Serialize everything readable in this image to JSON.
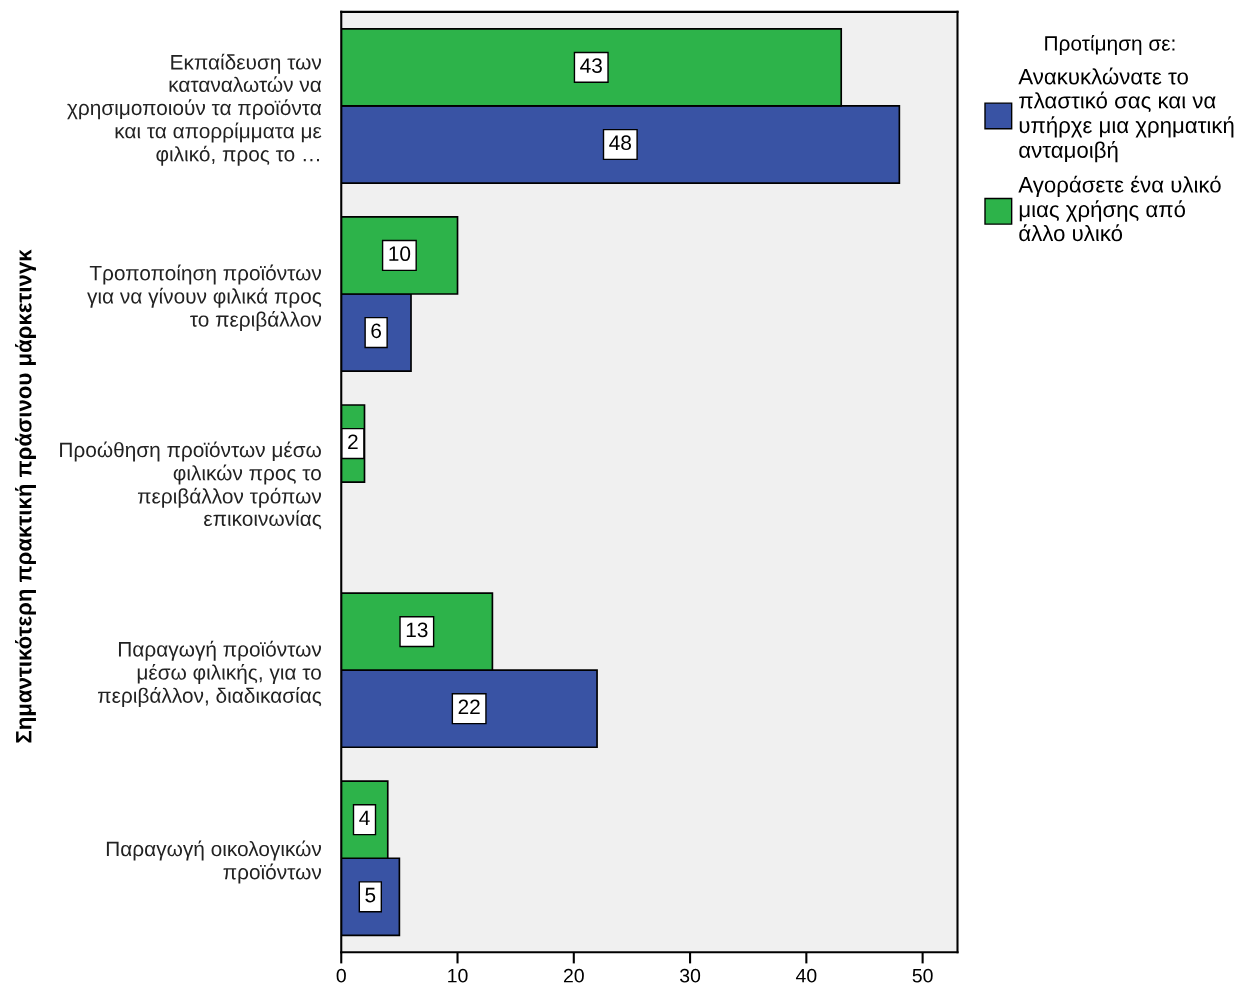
{
  "chart_data": {
    "type": "bar",
    "orientation": "horizontal",
    "ylabel": "Σημαντικότερη πρακτική πράσινου μάρκετινγκ",
    "legend_title": "Προτίμηση σε:",
    "categories": [
      "Εκπαίδευση των\nκαταναλωτών να\nχρησιμοποιούν τα προϊόντα\nκαι τα απορρίμματα με\nφιλικό, προς το …",
      "Τροποποίηση προϊόντων\nγια να γίνουν φιλικά προς\nτο περιβάλλον",
      "Προώθηση προϊόντων μέσω\nφιλικών προς το\nπεριβάλλον τρόπων\nεπικοινωνίας",
      "Παραγωγή προϊόντων\nμέσω φιλικής, για το\nπεριβάλλον, διαδικασίας",
      "Παραγωγή οικολογικών\nπροϊόντων"
    ],
    "series": [
      {
        "name": "Ανακυκλώνατε το\nπλαστικό σας και να\nυπήρχε μια χρηματική\nανταμοιβή",
        "color": "#3953a4",
        "values": [
          48,
          6,
          null,
          22,
          5
        ]
      },
      {
        "name": "Αγοράσετε ένα υλικό\nμιας χρήσης από\nάλλο υλικό",
        "color": "#2db34a",
        "values": [
          43,
          10,
          2,
          13,
          4
        ]
      }
    ],
    "xlim": [
      0,
      53
    ],
    "xticks": [
      0,
      10,
      20,
      30,
      40,
      50
    ],
    "data_labels": true,
    "grid": false,
    "legend": "right"
  }
}
